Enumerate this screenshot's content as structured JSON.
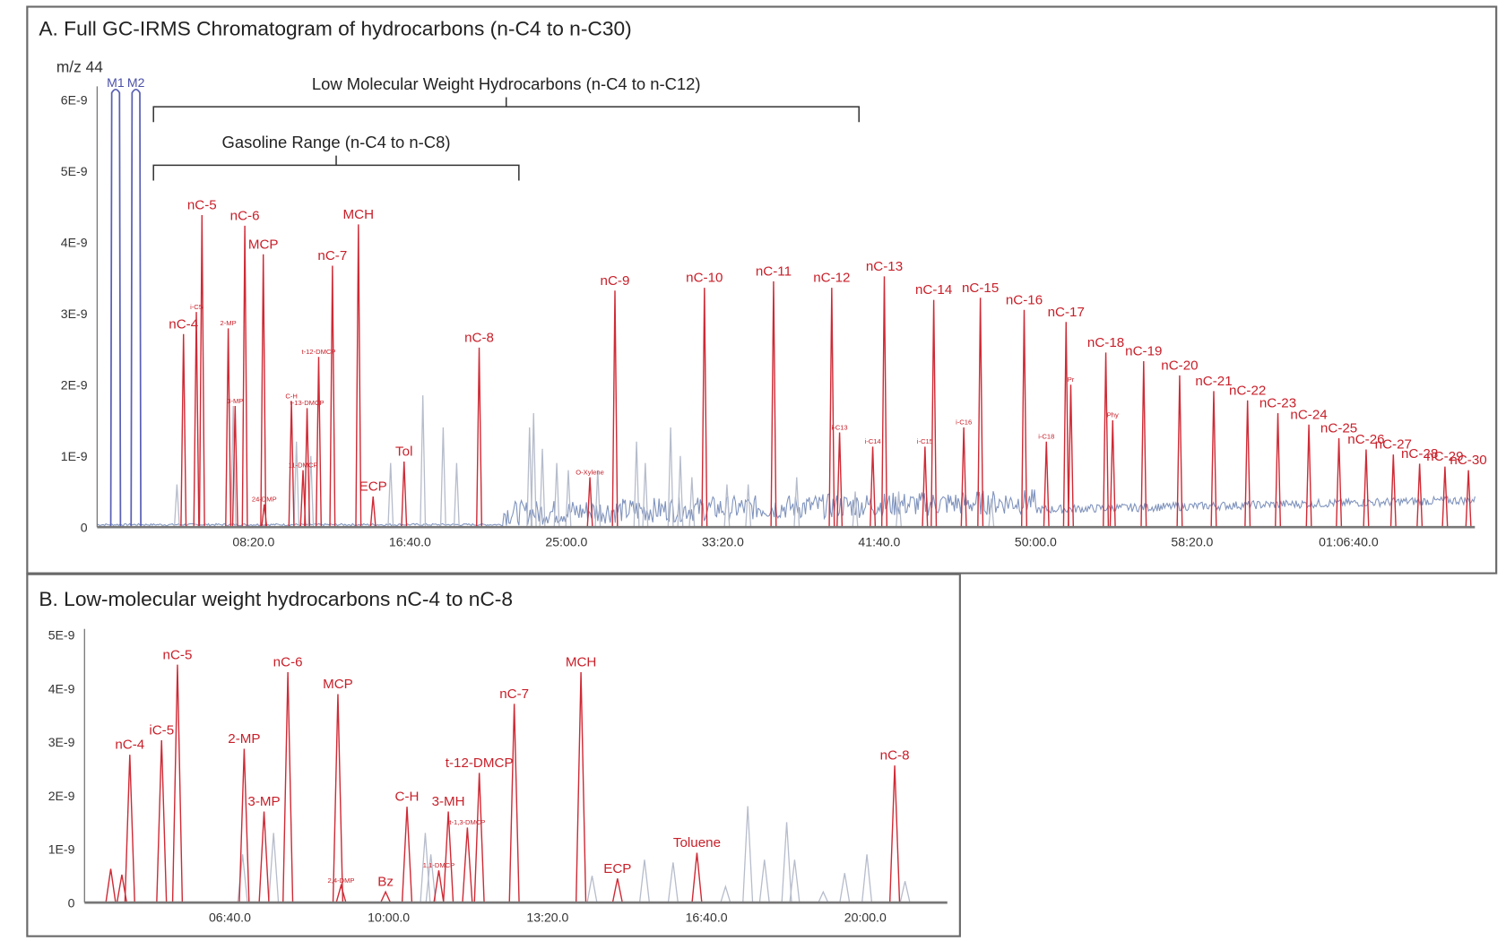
{
  "chart_data": [
    {
      "type": "line",
      "title": "A. Full GC-IRMS Chromatogram of hydrocarbons (n-C4 to n-C30)",
      "ylabel": "m/z 44",
      "xlim_seconds": [
        0,
        4404
      ],
      "ylim": [
        0,
        6e-09
      ],
      "grid": false,
      "y_ticks": [
        {
          "v": 0,
          "label": "0"
        },
        {
          "v": 1,
          "label": "1E-9"
        },
        {
          "v": 2,
          "label": "2E-9"
        },
        {
          "v": 3,
          "label": "3E-9"
        },
        {
          "v": 4,
          "label": "4E-9"
        },
        {
          "v": 5,
          "label": "5E-9"
        },
        {
          "v": 6,
          "label": "6E-9"
        }
      ],
      "x_ticks": [
        {
          "t": 500,
          "label": "08:20.0"
        },
        {
          "t": 1000,
          "label": "16:40.0"
        },
        {
          "t": 1500,
          "label": "25:00.0"
        },
        {
          "t": 2000,
          "label": "33:20.0"
        },
        {
          "t": 2500,
          "label": "41:40.0"
        },
        {
          "t": 3000,
          "label": "50:00.0"
        },
        {
          "t": 3500,
          "label": "58:20.0"
        },
        {
          "t": 4000,
          "label": "01:06:40.0"
        }
      ],
      "y_unit_note": "peak heights in units of 1E-9",
      "reference_peaks": [
        {
          "label": "M1",
          "t": 59,
          "h": 6.15
        },
        {
          "label": "M2",
          "t": 124,
          "h": 6.15
        }
      ],
      "brackets": [
        {
          "label": "Low Molecular Weight Hydrocarbons (n-C4 to n-C12)",
          "t_start": 180,
          "t_end": 2435,
          "level": 5.9
        },
        {
          "label": "Gasoline Range (n-C4 to n-C8)",
          "t_start": 180,
          "t_end": 1348,
          "level": 5.08
        }
      ],
      "peaks": [
        {
          "label": "nC-4",
          "t": 276,
          "h": 2.71
        },
        {
          "label": "i-C5",
          "t": 317,
          "h": 3.02
        },
        {
          "label": "nC-5",
          "t": 335,
          "h": 4.38
        },
        {
          "label": "2-MP",
          "t": 419,
          "h": 2.79
        },
        {
          "label": "3-MP",
          "t": 441,
          "h": 1.7
        },
        {
          "label": "nC-6",
          "t": 472,
          "h": 4.23
        },
        {
          "label": "MCP",
          "t": 531,
          "h": 3.83
        },
        {
          "label": "24-DMP",
          "t": 534,
          "h": 0.32
        },
        {
          "label": "C-H",
          "t": 621,
          "h": 1.77
        },
        {
          "label": "11-DMCP",
          "t": 658,
          "h": 0.8
        },
        {
          "label": "t-13-DMCP",
          "t": 671,
          "h": 1.67
        },
        {
          "label": "t-12-DMCP",
          "t": 708,
          "h": 2.39
        },
        {
          "label": "nC-7",
          "t": 752,
          "h": 3.67
        },
        {
          "label": "MCH",
          "t": 835,
          "h": 4.25
        },
        {
          "label": "ECP",
          "t": 882,
          "h": 0.43
        },
        {
          "label": "Tol",
          "t": 981,
          "h": 0.92
        },
        {
          "label": "nC-8",
          "t": 1221,
          "h": 2.52
        },
        {
          "label": "O-Xylene",
          "t": 1575,
          "h": 0.7
        },
        {
          "label": "nC-9",
          "t": 1655,
          "h": 3.32
        },
        {
          "label": "nC-10",
          "t": 1941,
          "h": 3.36
        },
        {
          "label": "nC-11",
          "t": 2162,
          "h": 3.45
        },
        {
          "label": "nC-12",
          "t": 2348,
          "h": 3.36
        },
        {
          "label": "i-C13",
          "t": 2373,
          "h": 1.33
        },
        {
          "label": "i-C14",
          "t": 2479,
          "h": 1.13
        },
        {
          "label": "nC-13",
          "t": 2516,
          "h": 3.52
        },
        {
          "label": "i-C15",
          "t": 2646,
          "h": 1.13
        },
        {
          "label": "nC-14",
          "t": 2674,
          "h": 3.19
        },
        {
          "label": "i-C16",
          "t": 2770,
          "h": 1.4
        },
        {
          "label": "nC-15",
          "t": 2823,
          "h": 3.22
        },
        {
          "label": "nC-16",
          "t": 2963,
          "h": 3.05
        },
        {
          "label": "i-C18",
          "t": 3034,
          "h": 1.2
        },
        {
          "label": "nC-17",
          "t": 3097,
          "h": 2.88
        },
        {
          "label": "Pr",
          "t": 3112,
          "h": 2.0
        },
        {
          "label": "nC-18",
          "t": 3224,
          "h": 2.45
        },
        {
          "label": "Phy",
          "t": 3246,
          "h": 1.5
        },
        {
          "label": "nC-19",
          "t": 3345,
          "h": 2.33
        },
        {
          "label": "nC-20",
          "t": 3460,
          "h": 2.13
        },
        {
          "label": "nC-21",
          "t": 3569,
          "h": 1.91
        },
        {
          "label": "nC-22",
          "t": 3677,
          "h": 1.78
        },
        {
          "label": "nC-23",
          "t": 3774,
          "h": 1.6
        },
        {
          "label": "nC-24",
          "t": 3873,
          "h": 1.44
        },
        {
          "label": "nC-25",
          "t": 3969,
          "h": 1.25
        },
        {
          "label": "nC-26",
          "t": 4056,
          "h": 1.09
        },
        {
          "label": "nC-27",
          "t": 4143,
          "h": 1.02
        },
        {
          "label": "nC-28",
          "t": 4227,
          "h": 0.89
        },
        {
          "label": "nC-29",
          "t": 4308,
          "h": 0.85
        },
        {
          "label": "nC-30",
          "t": 4383,
          "h": 0.8
        }
      ],
      "unlabeled_peaks": [
        [
          255,
          0.6
        ],
        [
          435,
          1.7
        ],
        [
          637,
          1.2
        ],
        [
          683,
          1.0
        ],
        [
          938,
          0.9
        ],
        [
          1041,
          1.85
        ],
        [
          1106,
          1.4
        ],
        [
          1149,
          0.9
        ],
        [
          1382,
          1.4
        ],
        [
          1395,
          1.6
        ],
        [
          1423,
          1.1
        ],
        [
          1469,
          0.9
        ],
        [
          1506,
          0.8
        ],
        [
          1600,
          0.8
        ],
        [
          1724,
          1.2
        ],
        [
          1752,
          0.9
        ],
        [
          1833,
          1.4
        ],
        [
          1864,
          1.0
        ],
        [
          1901,
          0.7
        ],
        [
          2013,
          0.6
        ],
        [
          2081,
          0.6
        ],
        [
          2236,
          0.7
        ],
        [
          2423,
          0.5
        ],
        [
          2562,
          0.5
        ],
        [
          2858,
          0.4
        ]
      ],
      "colors": {
        "labeled": "#cf2a35",
        "unlabeled": "#b6bccb",
        "reference": "#5a60b5",
        "baseline": "#7f93bd"
      }
    },
    {
      "type": "line",
      "title": "B. Low-molecular weight hydrocarbons nC-4 to nC-8",
      "xlim_seconds": [
        217,
        1303
      ],
      "ylim": [
        0,
        5e-09
      ],
      "grid": false,
      "y_ticks": [
        {
          "v": 0,
          "label": "0"
        },
        {
          "v": 1,
          "label": "1E-9"
        },
        {
          "v": 2,
          "label": "2E-9"
        },
        {
          "v": 3,
          "label": "3E-9"
        },
        {
          "v": 4,
          "label": "4E-9"
        },
        {
          "v": 5,
          "label": "5E-9"
        }
      ],
      "x_ticks": [
        {
          "t": 400,
          "label": "06:40.0"
        },
        {
          "t": 600,
          "label": "10:00.0"
        },
        {
          "t": 800,
          "label": "13:20.0"
        },
        {
          "t": 1000,
          "label": "16:40.0"
        },
        {
          "t": 1200,
          "label": "20:00.0"
        }
      ],
      "peaks": [
        {
          "label": "",
          "t": 250,
          "h": 0.63
        },
        {
          "label": "",
          "t": 264,
          "h": 0.52
        },
        {
          "label": "nC-4",
          "t": 274,
          "h": 2.76
        },
        {
          "label": "iC-5",
          "t": 314,
          "h": 3.03
        },
        {
          "label": "nC-5",
          "t": 334,
          "h": 4.44
        },
        {
          "label": "2-MP",
          "t": 418,
          "h": 2.87
        },
        {
          "label": "3-MP",
          "t": 443,
          "h": 1.7
        },
        {
          "label": "nC-6",
          "t": 473,
          "h": 4.3
        },
        {
          "label": "MCP",
          "t": 536,
          "h": 3.89
        },
        {
          "label": "2,4-DMP",
          "t": 540,
          "h": 0.32
        },
        {
          "label": "Bz",
          "t": 596,
          "h": 0.2
        },
        {
          "label": "C-H",
          "t": 623,
          "h": 1.79
        },
        {
          "label": "1,1-DMCP",
          "t": 663,
          "h": 0.6
        },
        {
          "label": "3-MH",
          "t": 675,
          "h": 1.7
        },
        {
          "label": "t-1,3-DMCP",
          "t": 699,
          "h": 1.4
        },
        {
          "label": "t-12-DMCP",
          "t": 714,
          "h": 2.42
        },
        {
          "label": "nC-7",
          "t": 758,
          "h": 3.71
        },
        {
          "label": "MCH",
          "t": 842,
          "h": 4.3
        },
        {
          "label": "ECP",
          "t": 888,
          "h": 0.45
        },
        {
          "label": "Toluene",
          "t": 988,
          "h": 0.93
        },
        {
          "label": "nC-8",
          "t": 1237,
          "h": 2.56
        }
      ],
      "unlabeled_peaks": [
        [
          416,
          0.9
        ],
        [
          455,
          1.3
        ],
        [
          646,
          1.3
        ],
        [
          653,
          0.9
        ],
        [
          856,
          0.5
        ],
        [
          922,
          0.8
        ],
        [
          958,
          0.75
        ],
        [
          1024,
          0.3
        ],
        [
          1052,
          1.8
        ],
        [
          1073,
          0.8
        ],
        [
          1101,
          1.5
        ],
        [
          1111,
          0.8
        ],
        [
          1147,
          0.2
        ],
        [
          1174,
          0.55
        ],
        [
          1202,
          0.9
        ],
        [
          1250,
          0.4
        ]
      ],
      "colors": {
        "labeled": "#cf2a35",
        "unlabeled": "#c4c8d6"
      }
    }
  ]
}
